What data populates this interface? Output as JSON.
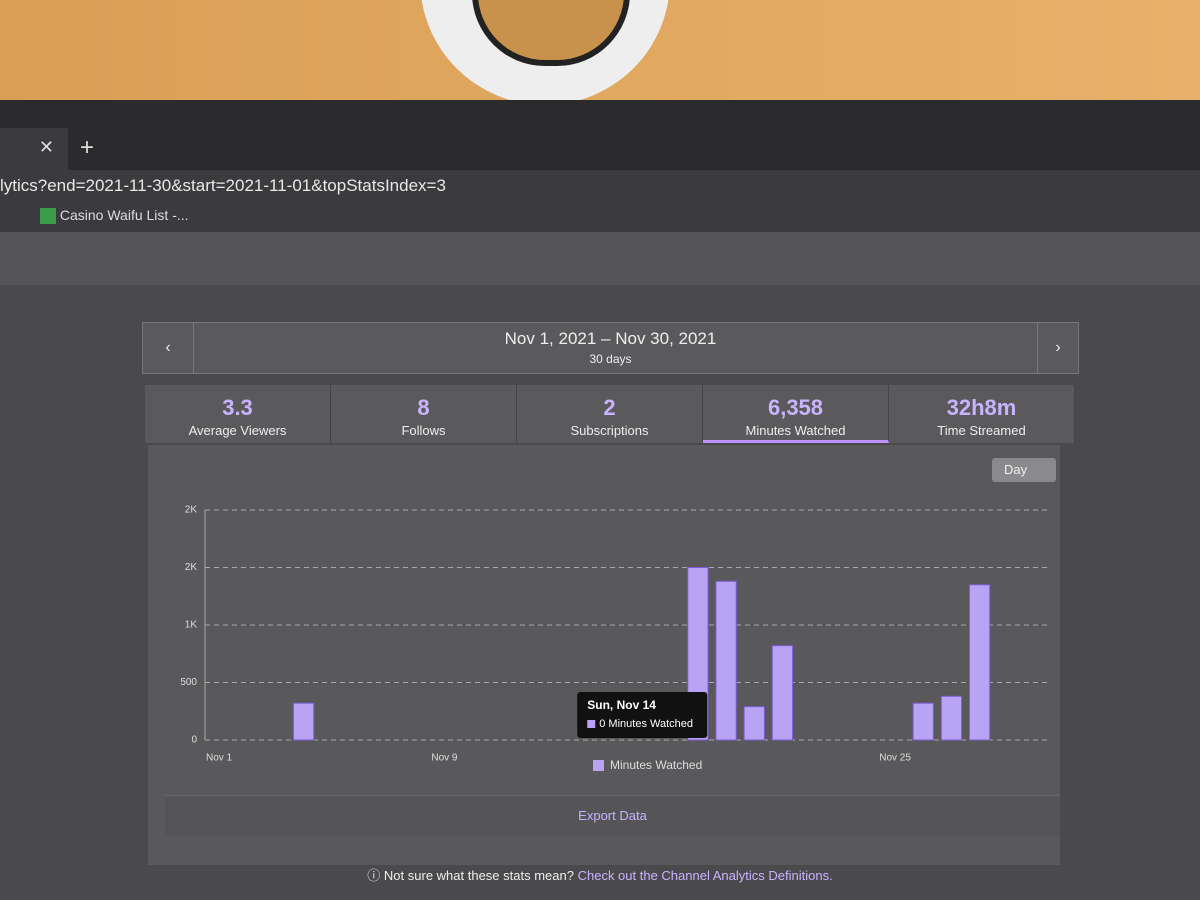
{
  "browser": {
    "url": "lytics?end=2021-11-30&start=2021-11-01&topStatsIndex=3",
    "bookmark": "Casino Waifu List -..."
  },
  "date_range": {
    "title": "Nov 1, 2021 – Nov 30, 2021",
    "subtitle": "30 days"
  },
  "stats": [
    {
      "value": "3.3",
      "label": "Average Viewers"
    },
    {
      "value": "8",
      "label": "Follows"
    },
    {
      "value": "2",
      "label": "Subscriptions"
    },
    {
      "value": "6,358",
      "label": "Minutes Watched"
    },
    {
      "value": "32h8m",
      "label": "Time Streamed"
    }
  ],
  "interval": "Day",
  "chart_data": {
    "type": "bar",
    "categories": [
      "Nov 1",
      null,
      null,
      null,
      null,
      null,
      null,
      null,
      "Nov 9",
      null,
      null,
      null,
      null,
      null,
      null,
      null,
      null,
      null,
      null,
      null,
      null,
      null,
      null,
      null,
      "Nov 25",
      null,
      null,
      null,
      null,
      null
    ],
    "series": [
      {
        "name": "Minutes Watched",
        "color": "#b9a3f5",
        "values": [
          0,
          0,
          0,
          320,
          0,
          0,
          0,
          0,
          0,
          0,
          0,
          0,
          0,
          0,
          0,
          0,
          0,
          1500,
          1380,
          290,
          820,
          0,
          0,
          0,
          0,
          320,
          380,
          1350,
          0,
          0
        ]
      }
    ],
    "ylim": [
      0,
      2000
    ],
    "yticks": [
      0,
      500,
      {
        "value": 1000,
        "label": "1K"
      },
      {
        "value": 1500,
        "label": "2K"
      },
      {
        "value": 2000,
        "label": "2K"
      }
    ],
    "grid": true,
    "tooltip": {
      "title": "Sun, Nov 14",
      "text": "0 Minutes Watched"
    }
  },
  "export": "Export Data",
  "footer": {
    "question": "Not sure what these stats mean?",
    "link": "Check out the Channel Analytics Definitions."
  }
}
